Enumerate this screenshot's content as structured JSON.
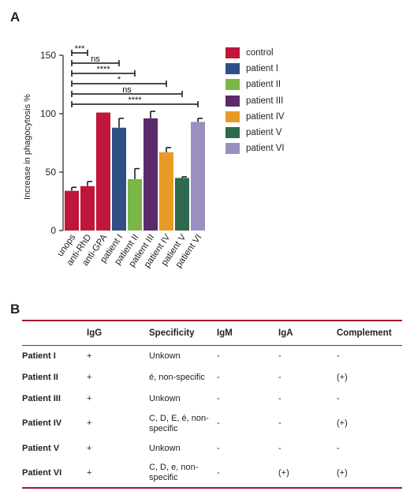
{
  "panel_a": {
    "label": "A"
  },
  "panel_b": {
    "label": "B"
  },
  "chart_data": {
    "type": "bar",
    "ylabel": "Increase in phagocytosis %",
    "xlabel": "",
    "ylim": [
      0,
      150
    ],
    "yticks": [
      "0",
      "50",
      "100",
      "150"
    ],
    "categories": [
      "unops",
      "anti-RhD",
      "anti-GPA",
      "patient I",
      "patient II",
      "patient III",
      "patient IV",
      "patient V",
      "patient VI"
    ],
    "values": [
      34,
      38,
      101,
      88,
      44,
      96,
      67,
      45,
      93
    ],
    "errors": [
      3,
      4,
      0,
      8,
      9,
      6,
      4,
      1,
      3
    ],
    "colors": [
      "#c0163a",
      "#c0163a",
      "#c0163a",
      "#2f4f86",
      "#7ab648",
      "#5b2a6b",
      "#e89a27",
      "#2f6a4f",
      "#9b8fc2"
    ],
    "legend": [
      {
        "name": "control",
        "color": "#c0163a"
      },
      {
        "name": "patient I",
        "color": "#2f4f86"
      },
      {
        "name": "patient II",
        "color": "#7ab648"
      },
      {
        "name": "patient III",
        "color": "#5b2a6b"
      },
      {
        "name": "patient IV",
        "color": "#e89a27"
      },
      {
        "name": "patient V",
        "color": "#2f6a4f"
      },
      {
        "name": "patient VI",
        "color": "#9b8fc2"
      }
    ],
    "comparisons": [
      {
        "from": "unops",
        "to": "anti-RhD",
        "label": "***"
      },
      {
        "from": "unops",
        "to": "patient I",
        "label": "ns"
      },
      {
        "from": "unops",
        "to": "patient II",
        "label": "****"
      },
      {
        "from": "unops",
        "to": "patient IV",
        "label": "*"
      },
      {
        "from": "unops",
        "to": "patient V",
        "label": "ns"
      },
      {
        "from": "unops",
        "to": "patient VI",
        "label": "****"
      }
    ]
  },
  "table": {
    "headers": [
      "",
      "IgG",
      "Specificity",
      "IgM",
      "IgA",
      "Complement"
    ],
    "rows": [
      {
        "patient": "Patient I",
        "igg": "+",
        "specificity": "Unkown",
        "igm": "-",
        "iga": "-",
        "complement": "-"
      },
      {
        "patient": "Patient II",
        "igg": "+",
        "specificity": "é, non-specific",
        "igm": "-",
        "iga": "-",
        "complement": "(+)"
      },
      {
        "patient": "Patient III",
        "igg": "+",
        "specificity": "Unkown",
        "igm": "-",
        "iga": "-",
        "complement": "-"
      },
      {
        "patient": "Patient IV",
        "igg": "+",
        "specificity": "C, D, E, é, non-specific",
        "igm": "-",
        "iga": "-",
        "complement": "(+)"
      },
      {
        "patient": "Patient V",
        "igg": "+",
        "specificity": "Unkown",
        "igm": "-",
        "iga": "-",
        "complement": "-"
      },
      {
        "patient": "Patient VI",
        "igg": "+",
        "specificity": "C, D, e, non-specific",
        "igm": "-",
        "iga": "(+)",
        "complement": "(+)"
      }
    ]
  }
}
